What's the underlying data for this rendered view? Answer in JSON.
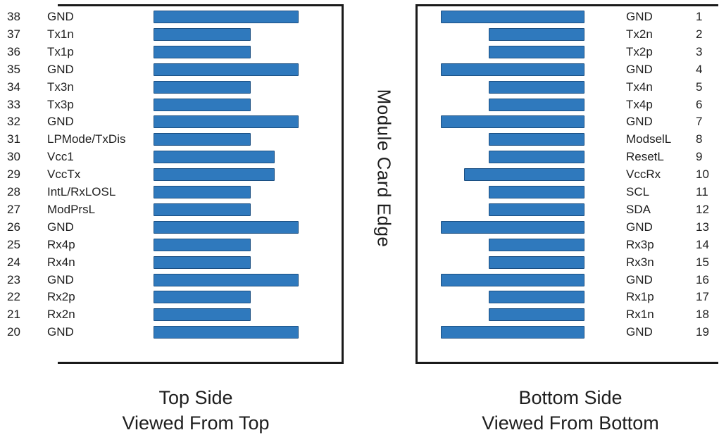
{
  "module_edge_label": "Module Card Edge",
  "top_side": {
    "caption_line1": "Top Side",
    "caption_line2": "Viewed From Top",
    "pins": [
      {
        "num": "38",
        "name": "GND"
      },
      {
        "num": "37",
        "name": "Tx1n"
      },
      {
        "num": "36",
        "name": "Tx1p"
      },
      {
        "num": "35",
        "name": "GND"
      },
      {
        "num": "34",
        "name": "Tx3n"
      },
      {
        "num": "33",
        "name": "Tx3p"
      },
      {
        "num": "32",
        "name": "GND"
      },
      {
        "num": "31",
        "name": "LPMode/TxDis"
      },
      {
        "num": "30",
        "name": "Vcc1"
      },
      {
        "num": "29",
        "name": "VccTx"
      },
      {
        "num": "28",
        "name": "IntL/RxLOSL"
      },
      {
        "num": "27",
        "name": "ModPrsL"
      },
      {
        "num": "26",
        "name": "GND"
      },
      {
        "num": "25",
        "name": "Rx4p"
      },
      {
        "num": "24",
        "name": "Rx4n"
      },
      {
        "num": "23",
        "name": "GND"
      },
      {
        "num": "22",
        "name": "Rx2p"
      },
      {
        "num": "21",
        "name": "Rx2n"
      },
      {
        "num": "20",
        "name": "GND"
      }
    ]
  },
  "bottom_side": {
    "caption_line1": "Bottom Side",
    "caption_line2": "Viewed From Bottom",
    "pins": [
      {
        "num": "1",
        "name": "GND"
      },
      {
        "num": "2",
        "name": "Tx2n"
      },
      {
        "num": "3",
        "name": "Tx2p"
      },
      {
        "num": "4",
        "name": "GND"
      },
      {
        "num": "5",
        "name": "Tx4n"
      },
      {
        "num": "6",
        "name": "Tx4p"
      },
      {
        "num": "7",
        "name": "GND"
      },
      {
        "num": "8",
        "name": "ModselL"
      },
      {
        "num": "9",
        "name": "ResetL"
      },
      {
        "num": "10",
        "name": "VccRx"
      },
      {
        "num": "11",
        "name": "SCL"
      },
      {
        "num": "12",
        "name": "SDA"
      },
      {
        "num": "13",
        "name": "GND"
      },
      {
        "num": "14",
        "name": "Rx3p"
      },
      {
        "num": "15",
        "name": "Rx3n"
      },
      {
        "num": "16",
        "name": "GND"
      },
      {
        "num": "17",
        "name": "Rx1p"
      },
      {
        "num": "18",
        "name": "Rx1n"
      },
      {
        "num": "19",
        "name": "GND"
      }
    ]
  },
  "colors": {
    "pad_fill": "#2f79bd",
    "pad_border": "#1b4f82",
    "frame": "#1a1a1a"
  }
}
